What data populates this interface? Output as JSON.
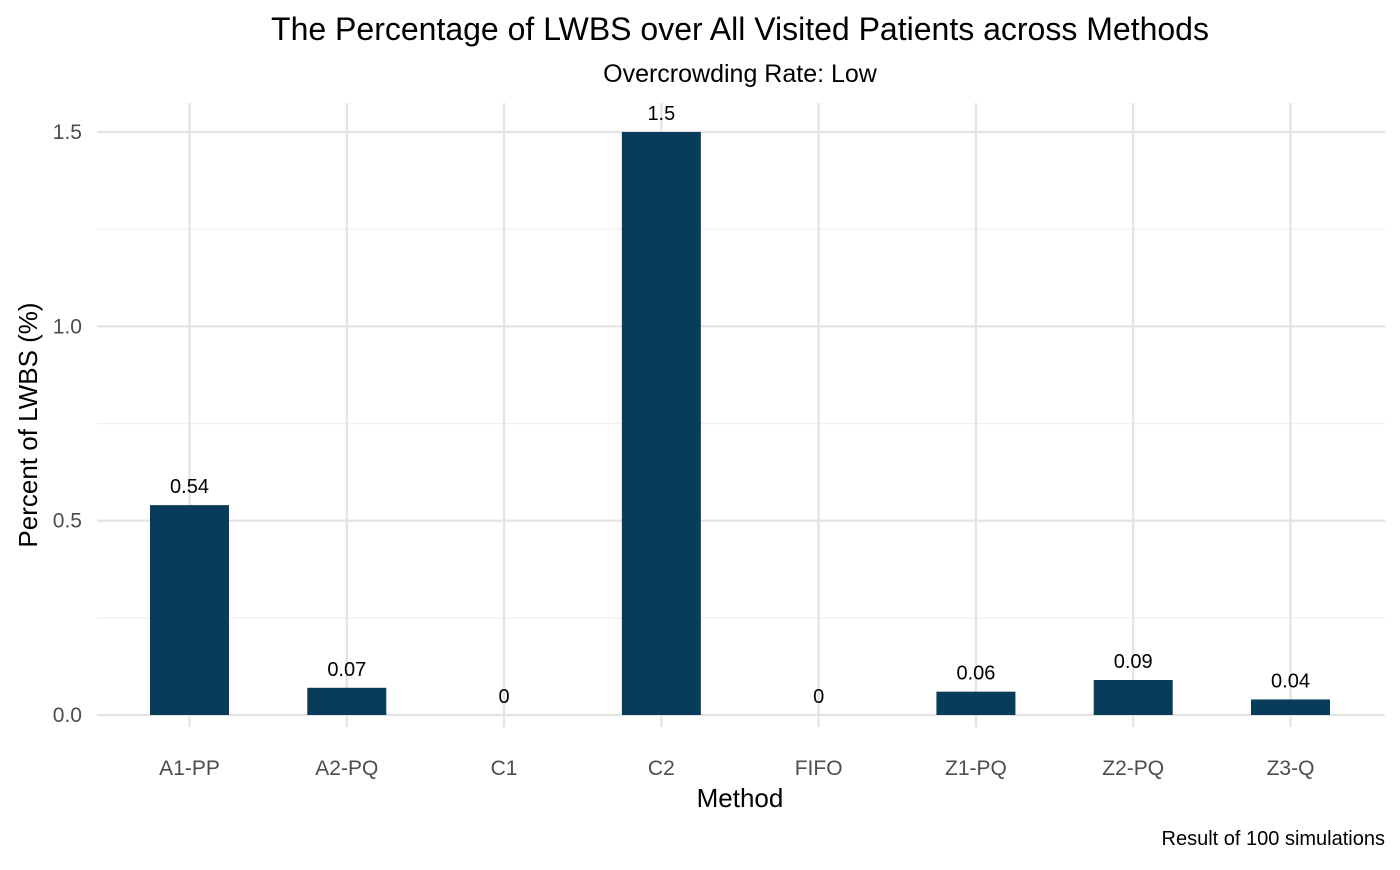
{
  "chart_data": {
    "type": "bar",
    "title": "The Percentage of LWBS over All Visited Patients across Methods",
    "subtitle": "Overcrowding Rate: Low",
    "xlabel": "Method",
    "ylabel": "Percent of LWBS (%)",
    "caption": "Result of 100 simulations",
    "categories": [
      "A1-PP",
      "A2-PQ",
      "C1",
      "C2",
      "FIFO",
      "Z1-PQ",
      "Z2-PQ",
      "Z3-Q"
    ],
    "values": [
      0.54,
      0.07,
      0,
      1.5,
      0,
      0.06,
      0.09,
      0.04
    ],
    "value_labels": [
      "0.54",
      "0.07",
      "0",
      "1.5",
      "0",
      "0.06",
      "0.09",
      "0.04"
    ],
    "ylim": [
      0,
      1.5
    ],
    "y_ticks": [
      0.0,
      0.5,
      1.0,
      1.5
    ],
    "y_tick_labels": [
      "0.0",
      "0.5",
      "1.0",
      "1.5"
    ],
    "y_minor_ticks": [
      0.25,
      0.75,
      1.25
    ],
    "grid": true,
    "legend": "none",
    "colors": {
      "bar": "#083c5a",
      "grid_major": "#e3e3e3",
      "grid_minor": "#efefef",
      "axis_text": "#4d4d4d",
      "text": "#000000"
    }
  }
}
